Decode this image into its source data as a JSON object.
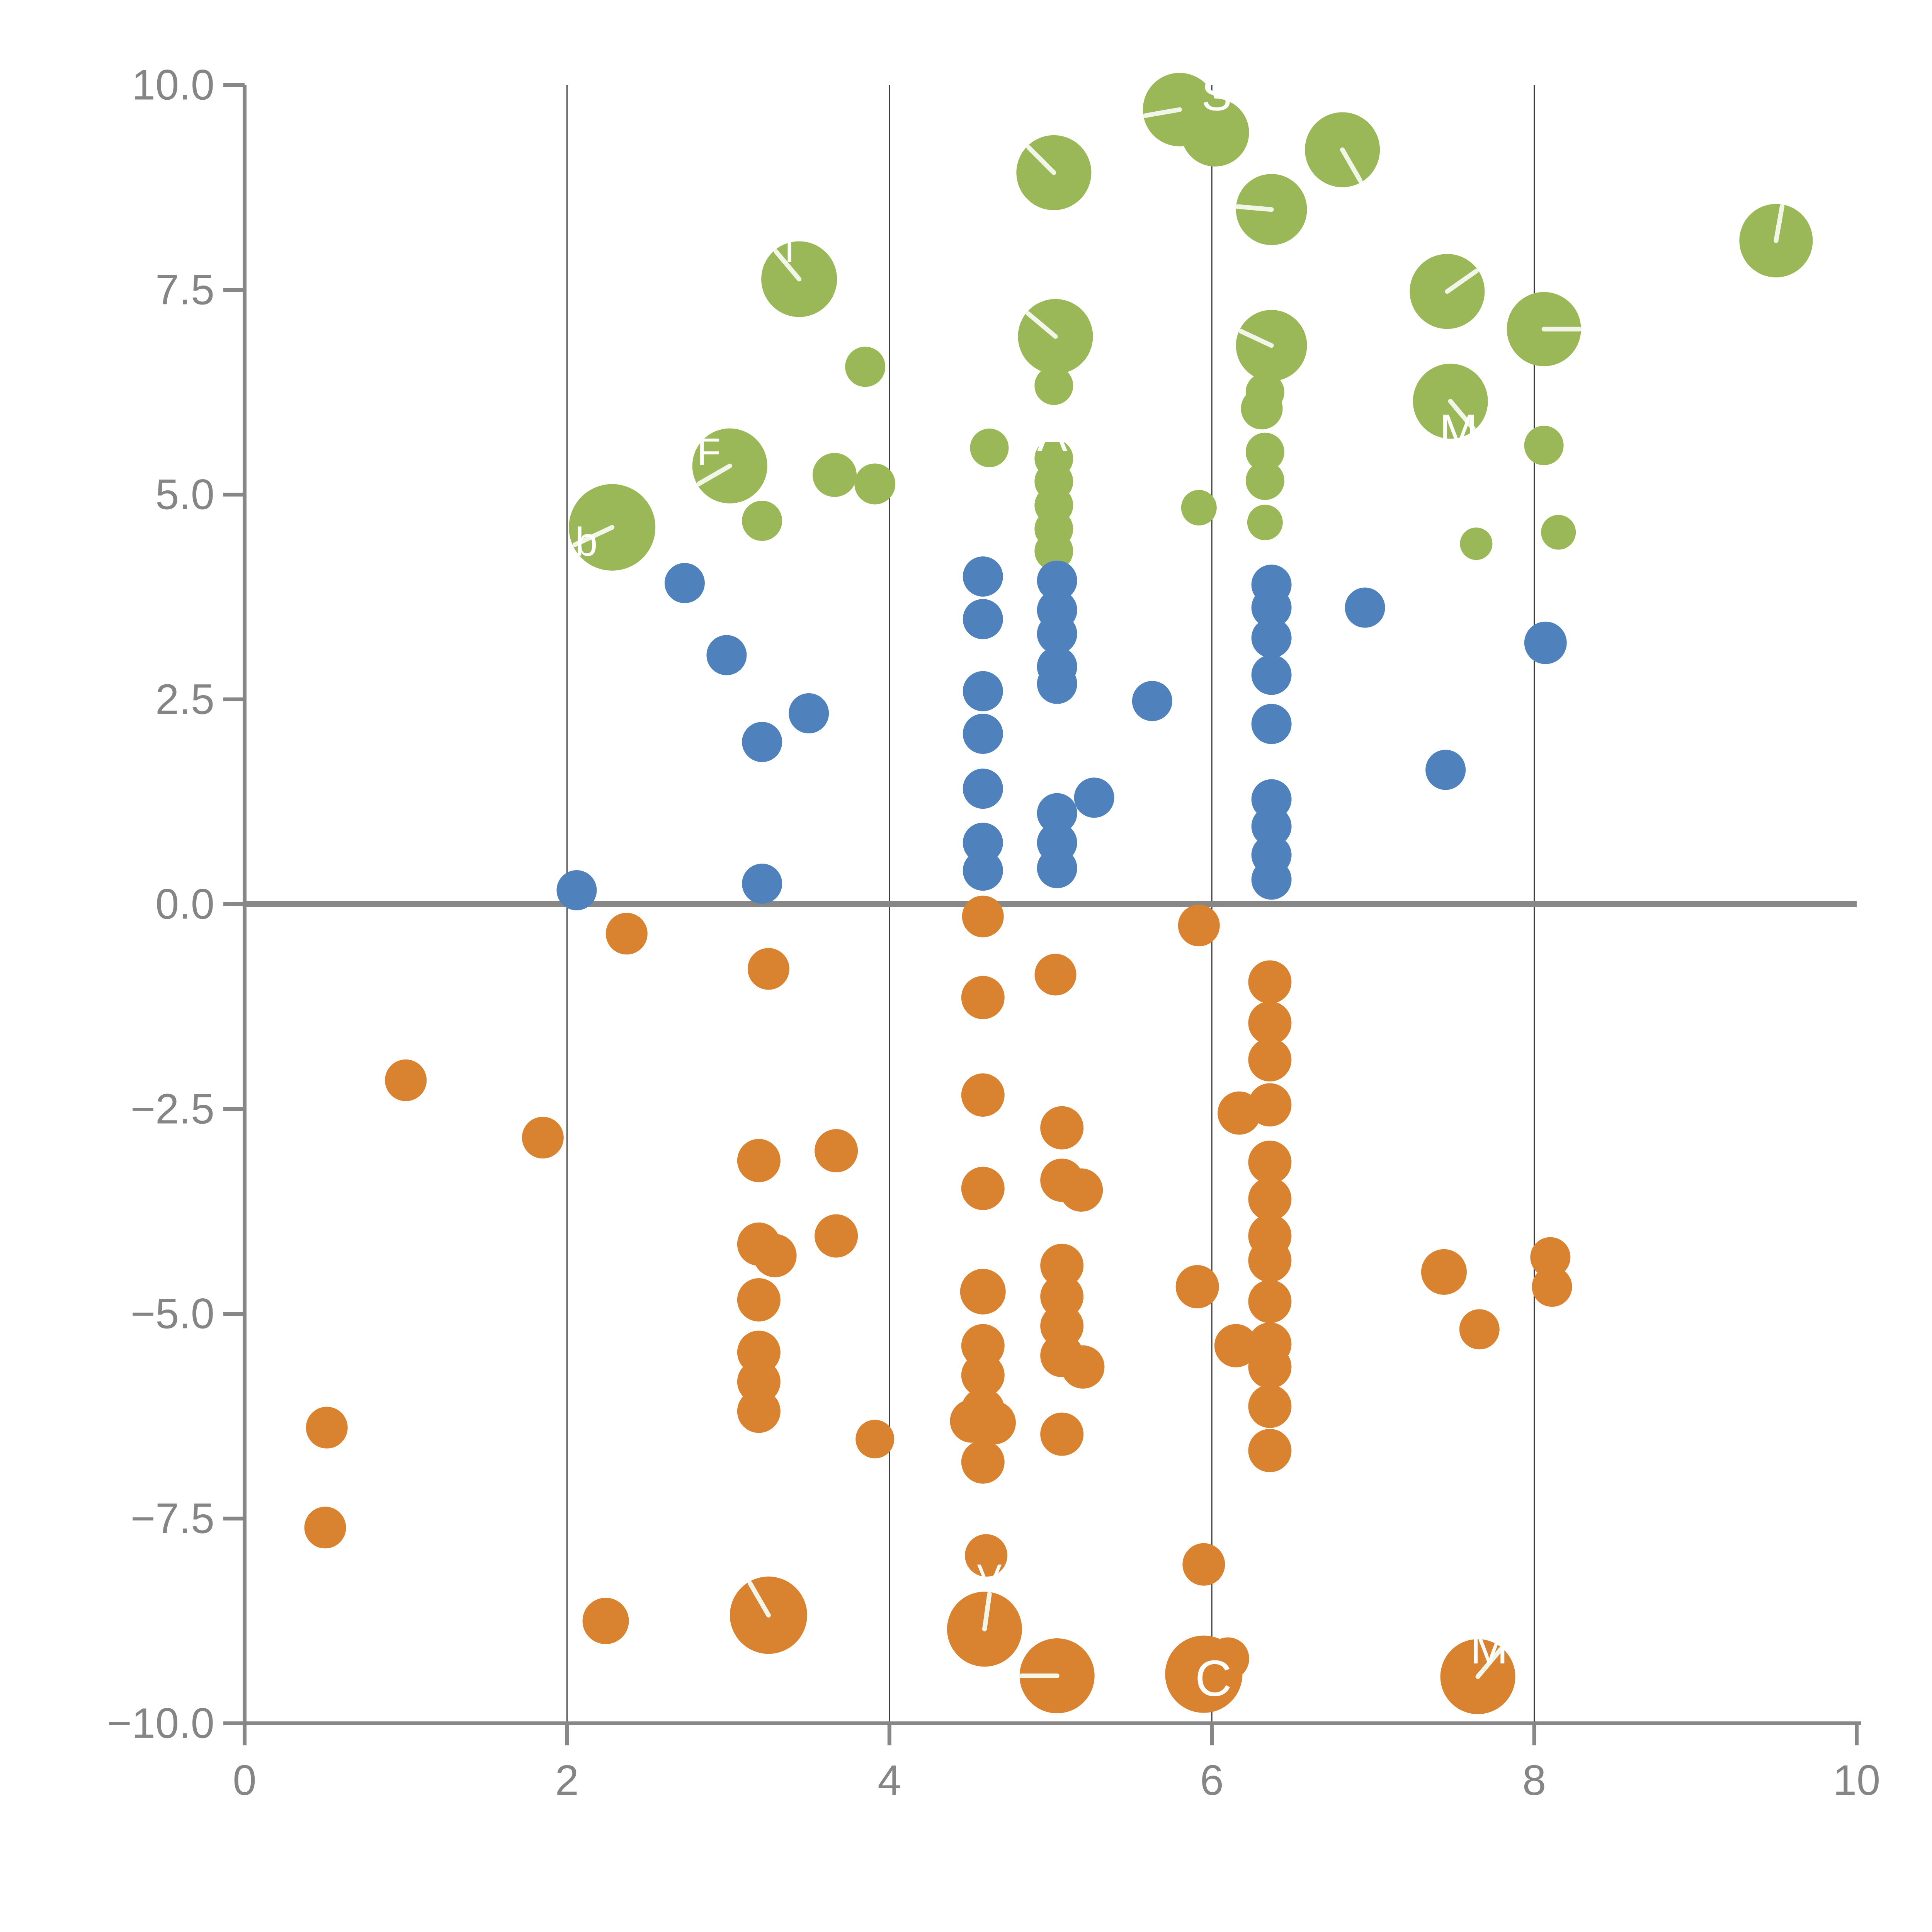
{
  "chart_data": {
    "type": "scatter",
    "title": "",
    "xlabel": "",
    "ylabel": "",
    "xlim": [
      0,
      10
    ],
    "ylim": [
      -10,
      10
    ],
    "grid_x": [
      2,
      4,
      6,
      8
    ],
    "zero_rule_y": 0,
    "x_ticks": [
      {
        "v": 0,
        "label": "0"
      },
      {
        "v": 2,
        "label": "2"
      },
      {
        "v": 4,
        "label": "4"
      },
      {
        "v": 6,
        "label": "6"
      },
      {
        "v": 8,
        "label": "8"
      },
      {
        "v": 10,
        "label": "10"
      }
    ],
    "y_ticks": [
      {
        "v": 10,
        "label": "10.0"
      },
      {
        "v": 7.5,
        "label": "7.5"
      },
      {
        "v": 5,
        "label": "5.0"
      },
      {
        "v": 2.5,
        "label": "2.5"
      },
      {
        "v": 0,
        "label": "0.0"
      },
      {
        "v": -2.5,
        "label": "−2.5"
      },
      {
        "v": -5,
        "label": "−5.0"
      },
      {
        "v": -7.5,
        "label": "−7.5"
      },
      {
        "v": -10,
        "label": "−10.0"
      }
    ],
    "colors": {
      "green": "#9bb859",
      "blue": "#4f81bd",
      "orange": "#d9822f",
      "axis": "#878787",
      "grid": "#3d3d3d",
      "tick_text": "#858585",
      "bubble_line": "#f2f6e9",
      "bubble_label": "#ffffff"
    },
    "series": [
      {
        "name": "green",
        "points": [
          {
            "x": 2.28,
            "y": 4.6,
            "r": 112,
            "a": 205
          },
          {
            "x": 3.01,
            "y": 5.35,
            "r": 97,
            "a": 210
          },
          {
            "x": 3.21,
            "y": 4.68,
            "r": 52
          },
          {
            "x": 3.44,
            "y": 7.63,
            "r": 98,
            "a": 130
          },
          {
            "x": 3.66,
            "y": 5.24,
            "r": 57
          },
          {
            "x": 3.85,
            "y": 6.56,
            "r": 52
          },
          {
            "x": 3.91,
            "y": 5.13,
            "r": 53
          },
          {
            "x": 4.62,
            "y": 5.57,
            "r": 50
          },
          {
            "x": 5.02,
            "y": 8.93,
            "r": 97,
            "a": 135
          },
          {
            "x": 5.03,
            "y": 6.93,
            "r": 97,
            "a": 140
          },
          {
            "x": 5.02,
            "y": 6.33,
            "r": 50
          },
          {
            "x": 5.02,
            "y": 5.44,
            "r": 50
          },
          {
            "x": 5.02,
            "y": 5.16,
            "r": 50
          },
          {
            "x": 5.02,
            "y": 4.87,
            "r": 50
          },
          {
            "x": 5.02,
            "y": 4.58,
            "r": 50
          },
          {
            "x": 5.02,
            "y": 4.31,
            "r": 50
          },
          {
            "x": 5.8,
            "y": 9.7,
            "r": 95,
            "a": 190
          },
          {
            "x": 6.02,
            "y": 9.42,
            "r": 88
          },
          {
            "x": 5.92,
            "y": 4.84,
            "r": 46
          },
          {
            "x": 6.37,
            "y": 8.48,
            "r": 92,
            "a": 175
          },
          {
            "x": 6.37,
            "y": 6.82,
            "r": 92,
            "a": 155
          },
          {
            "x": 6.33,
            "y": 6.25,
            "r": 50
          },
          {
            "x": 6.31,
            "y": 6.05,
            "r": 54
          },
          {
            "x": 6.33,
            "y": 5.52,
            "r": 50
          },
          {
            "x": 6.33,
            "y": 5.17,
            "r": 50
          },
          {
            "x": 6.33,
            "y": 4.66,
            "r": 46
          },
          {
            "x": 6.81,
            "y": 9.21,
            "r": 97,
            "a": -60
          },
          {
            "x": 7.46,
            "y": 7.48,
            "r": 97,
            "a": 35
          },
          {
            "x": 7.48,
            "y": 6.14,
            "r": 97,
            "a": -50
          },
          {
            "x": 7.64,
            "y": 4.4,
            "r": 42
          },
          {
            "x": 8.06,
            "y": 7.02,
            "r": 96,
            "a": 0
          },
          {
            "x": 8.06,
            "y": 5.6,
            "r": 51
          },
          {
            "x": 8.15,
            "y": 4.54,
            "r": 45
          },
          {
            "x": 9.5,
            "y": 8.1,
            "r": 95,
            "a": 80
          }
        ]
      },
      {
        "name": "blue",
        "points": [
          {
            "x": 2.06,
            "y": 0.17,
            "r": 52
          },
          {
            "x": 2.73,
            "y": 3.92,
            "r": 52
          },
          {
            "x": 2.99,
            "y": 3.04,
            "r": 52
          },
          {
            "x": 3.21,
            "y": 1.98,
            "r": 52
          },
          {
            "x": 3.21,
            "y": 0.25,
            "r": 52
          },
          {
            "x": 3.5,
            "y": 2.33,
            "r": 52
          },
          {
            "x": 4.58,
            "y": 4.0,
            "r": 52
          },
          {
            "x": 4.58,
            "y": 3.48,
            "r": 52
          },
          {
            "x": 4.58,
            "y": 2.6,
            "r": 52
          },
          {
            "x": 4.58,
            "y": 2.08,
            "r": 52
          },
          {
            "x": 4.58,
            "y": 1.41,
            "r": 52
          },
          {
            "x": 4.58,
            "y": 0.75,
            "r": 52
          },
          {
            "x": 4.58,
            "y": 0.41,
            "r": 52
          },
          {
            "x": 5.04,
            "y": 3.95,
            "r": 52
          },
          {
            "x": 5.04,
            "y": 3.59,
            "r": 52
          },
          {
            "x": 5.04,
            "y": 3.3,
            "r": 52
          },
          {
            "x": 5.04,
            "y": 2.9,
            "r": 52
          },
          {
            "x": 5.04,
            "y": 2.69,
            "r": 52
          },
          {
            "x": 5.04,
            "y": 1.11,
            "r": 52
          },
          {
            "x": 5.04,
            "y": 0.75,
            "r": 52
          },
          {
            "x": 5.04,
            "y": 0.44,
            "r": 52
          },
          {
            "x": 5.27,
            "y": 1.3,
            "r": 52
          },
          {
            "x": 5.63,
            "y": 2.48,
            "r": 52
          },
          {
            "x": 6.37,
            "y": 3.9,
            "r": 52
          },
          {
            "x": 6.37,
            "y": 3.62,
            "r": 52
          },
          {
            "x": 6.37,
            "y": 3.25,
            "r": 52
          },
          {
            "x": 6.37,
            "y": 2.8,
            "r": 52
          },
          {
            "x": 6.37,
            "y": 2.2,
            "r": 52
          },
          {
            "x": 6.37,
            "y": 1.28,
            "r": 52
          },
          {
            "x": 6.37,
            "y": 0.95,
            "r": 52
          },
          {
            "x": 6.37,
            "y": 0.6,
            "r": 52
          },
          {
            "x": 6.37,
            "y": 0.3,
            "r": 52
          },
          {
            "x": 6.95,
            "y": 3.62,
            "r": 52
          },
          {
            "x": 7.45,
            "y": 1.64,
            "r": 52
          },
          {
            "x": 8.07,
            "y": 3.19,
            "r": 55
          }
        ]
      },
      {
        "name": "orange",
        "points": [
          {
            "x": 0.51,
            "y": -6.39,
            "r": 54
          },
          {
            "x": 0.5,
            "y": -7.61,
            "r": 54
          },
          {
            "x": 1.0,
            "y": -2.15,
            "r": 54
          },
          {
            "x": 1.85,
            "y": -2.85,
            "r": 54
          },
          {
            "x": 2.24,
            "y": -8.75,
            "r": 60
          },
          {
            "x": 2.37,
            "y": -0.36,
            "r": 54
          },
          {
            "x": 3.25,
            "y": -0.79,
            "r": 54
          },
          {
            "x": 3.19,
            "y": -3.13,
            "r": 56
          },
          {
            "x": 3.19,
            "y": -4.15,
            "r": 56
          },
          {
            "x": 3.29,
            "y": -4.29,
            "r": 56
          },
          {
            "x": 3.19,
            "y": -4.83,
            "r": 56
          },
          {
            "x": 3.19,
            "y": -5.47,
            "r": 56
          },
          {
            "x": 3.19,
            "y": -5.83,
            "r": 56
          },
          {
            "x": 3.19,
            "y": -6.19,
            "r": 56
          },
          {
            "x": 3.67,
            "y": -3.01,
            "r": 56
          },
          {
            "x": 3.67,
            "y": -4.05,
            "r": 56
          },
          {
            "x": 3.91,
            "y": -6.53,
            "r": 50
          },
          {
            "x": 4.58,
            "y": -0.15,
            "r": 54
          },
          {
            "x": 4.58,
            "y": -1.14,
            "r": 56
          },
          {
            "x": 4.58,
            "y": -2.33,
            "r": 56
          },
          {
            "x": 4.58,
            "y": -3.47,
            "r": 56
          },
          {
            "x": 4.58,
            "y": -4.73,
            "r": 59
          },
          {
            "x": 4.58,
            "y": -5.39,
            "r": 56
          },
          {
            "x": 4.58,
            "y": -5.75,
            "r": 56
          },
          {
            "x": 4.58,
            "y": -6.17,
            "r": 56
          },
          {
            "x": 4.51,
            "y": -6.31,
            "r": 56
          },
          {
            "x": 4.65,
            "y": -6.33,
            "r": 56
          },
          {
            "x": 4.58,
            "y": -6.81,
            "r": 56
          },
          {
            "x": 5.03,
            "y": -0.86,
            "r": 54
          },
          {
            "x": 5.07,
            "y": -2.73,
            "r": 56
          },
          {
            "x": 5.07,
            "y": -3.37,
            "r": 56
          },
          {
            "x": 5.19,
            "y": -3.49,
            "r": 56
          },
          {
            "x": 5.07,
            "y": -4.41,
            "r": 56
          },
          {
            "x": 5.07,
            "y": -4.79,
            "r": 56
          },
          {
            "x": 5.07,
            "y": -5.15,
            "r": 56
          },
          {
            "x": 5.07,
            "y": -5.51,
            "r": 56
          },
          {
            "x": 5.2,
            "y": -5.65,
            "r": 56
          },
          {
            "x": 5.07,
            "y": -6.47,
            "r": 56
          },
          {
            "x": 5.92,
            "y": -0.26,
            "r": 54
          },
          {
            "x": 5.91,
            "y": -4.67,
            "r": 56
          },
          {
            "x": 6.36,
            "y": -0.95,
            "r": 56
          },
          {
            "x": 6.36,
            "y": -1.45,
            "r": 56
          },
          {
            "x": 6.36,
            "y": -1.9,
            "r": 56
          },
          {
            "x": 6.36,
            "y": -2.45,
            "r": 56
          },
          {
            "x": 6.17,
            "y": -2.55,
            "r": 56
          },
          {
            "x": 6.36,
            "y": -3.15,
            "r": 56
          },
          {
            "x": 6.36,
            "y": -3.6,
            "r": 56
          },
          {
            "x": 6.36,
            "y": -4.05,
            "r": 56
          },
          {
            "x": 6.36,
            "y": -4.35,
            "r": 56
          },
          {
            "x": 6.36,
            "y": -4.85,
            "r": 56
          },
          {
            "x": 6.36,
            "y": -5.37,
            "r": 56
          },
          {
            "x": 6.15,
            "y": -5.39,
            "r": 56
          },
          {
            "x": 6.36,
            "y": -5.65,
            "r": 56
          },
          {
            "x": 6.36,
            "y": -6.13,
            "r": 56
          },
          {
            "x": 6.36,
            "y": -6.67,
            "r": 56
          },
          {
            "x": 7.44,
            "y": -4.49,
            "r": 59
          },
          {
            "x": 7.66,
            "y": -5.19,
            "r": 52
          },
          {
            "x": 8.1,
            "y": -4.31,
            "r": 52
          },
          {
            "x": 8.11,
            "y": -4.67,
            "r": 52
          },
          {
            "x": 3.25,
            "y": -8.68,
            "r": 100,
            "a": 120
          },
          {
            "x": 4.6,
            "y": -7.95,
            "r": 55
          },
          {
            "x": 4.59,
            "y": -8.85,
            "r": 97,
            "a": 82
          },
          {
            "x": 5.04,
            "y": -9.42,
            "r": 97,
            "a": 180
          },
          {
            "x": 5.95,
            "y": -8.06,
            "r": 55
          },
          {
            "x": 5.95,
            "y": -9.4,
            "r": 100
          },
          {
            "x": 6.1,
            "y": -9.21,
            "r": 55
          },
          {
            "x": 7.65,
            "y": -9.43,
            "r": 97,
            "a": 50
          }
        ]
      }
    ],
    "bubble_labels": [
      {
        "text": "S",
        "x": 6.03,
        "y": 9.88,
        "size": 118
      },
      {
        "text": "A",
        "x": 5.01,
        "y": 5.72,
        "size": 118
      },
      {
        "text": "M",
        "x": 7.53,
        "y": 5.78,
        "size": 118
      },
      {
        "text": "b",
        "x": 2.12,
        "y": 4.42,
        "size": 104
      },
      {
        "text": "F",
        "x": 2.88,
        "y": 5.52,
        "size": 100
      },
      {
        "text": "T",
        "x": 3.38,
        "y": 8.0,
        "size": 100
      },
      {
        "text": "C",
        "x": 6.01,
        "y": -9.45,
        "size": 132
      },
      {
        "text": "M",
        "x": 7.72,
        "y": -9.08,
        "size": 118
      },
      {
        "text": "V",
        "x": 4.62,
        "y": -8.22,
        "size": 96
      }
    ]
  }
}
